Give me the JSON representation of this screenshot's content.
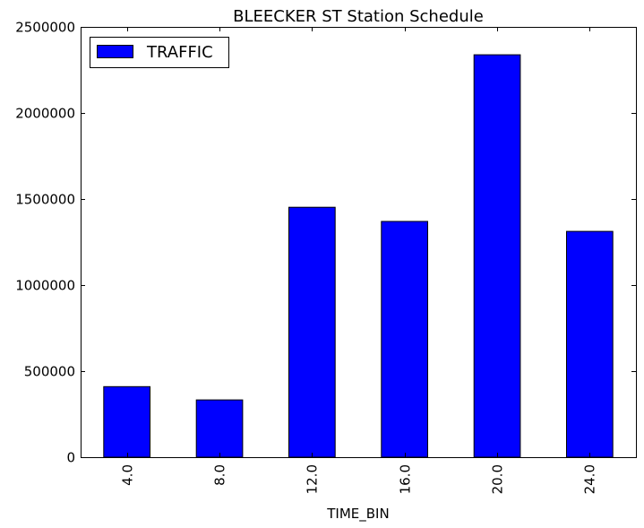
{
  "chart_data": {
    "type": "bar",
    "title": "BLEECKER ST Station Schedule",
    "xlabel": "TIME_BIN",
    "ylabel": "",
    "categories": [
      "4.0",
      "8.0",
      "12.0",
      "16.0",
      "20.0",
      "24.0"
    ],
    "series": [
      {
        "name": "TRAFFIC",
        "values": [
          410000,
          333000,
          1452000,
          1370000,
          2338000,
          1312000
        ]
      }
    ],
    "ylim": [
      0,
      2500000
    ],
    "yticks": [
      0,
      500000,
      1000000,
      1500000,
      2000000,
      2500000
    ],
    "ytick_labels": [
      "0",
      "500000",
      "1000000",
      "1500000",
      "2000000",
      "2500000"
    ],
    "legend_position": "top-left",
    "grid": false,
    "bar_color": "#0000ff",
    "tick_label_rotation": "vertical"
  }
}
